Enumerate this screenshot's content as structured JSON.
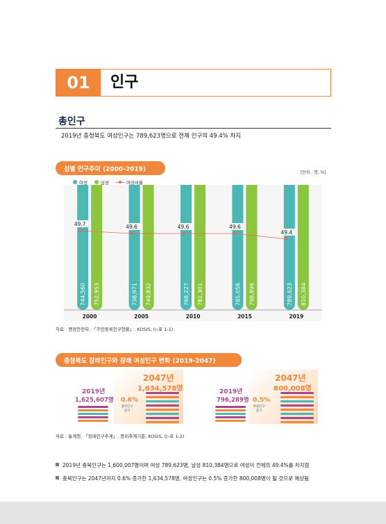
{
  "chapter": {
    "number": "01",
    "title": "인구"
  },
  "section": {
    "title": "총인구",
    "subtitle": "2019년 충청북도 여성인구는 789,623명으로 전체 인구의 49.4% 차지"
  },
  "chart1": {
    "title": "성별 인구추이 (2000-2019)",
    "unit": "[단위 : 명, %]",
    "legend": {
      "female": "여성",
      "male": "남성",
      "ratio": "여성비율"
    },
    "source": "자료 : 행정안전부, 「주민등록인구현황」, KOSIS, (▷표 1-1)"
  },
  "chart_data": {
    "type": "bar",
    "categories": [
      "2000",
      "2005",
      "2010",
      "2015",
      "2019"
    ],
    "series": [
      {
        "name": "여성",
        "values": [
          744560,
          738971,
          768227,
          785056,
          789623
        ],
        "labels": [
          "744,560",
          "738,971",
          "768,227",
          "785,056",
          "789,623"
        ],
        "color": "#4bb8b5"
      },
      {
        "name": "남성",
        "values": [
          752953,
          749832,
          781301,
          798896,
          810384
        ],
        "labels": [
          "752,953",
          "749,832",
          "781,301",
          "798,896",
          "810,384"
        ],
        "color": "#8cc63f"
      },
      {
        "name": "여성비율",
        "type": "line",
        "values": [
          49.7,
          49.6,
          49.6,
          49.6,
          49.4
        ],
        "color": "#e36c5a"
      }
    ],
    "ylim": [
      0,
      900000
    ]
  },
  "chart2": {
    "title": "충청북도 장래인구와 장래 여성인구 변화 (2019-2047)",
    "left": {
      "year_now": "2019년",
      "value_now": "1,625,607명",
      "year_future": "2047년",
      "value_future": "1,634,578명",
      "pct": "0.6%",
      "pct_label_1": "총북인구",
      "pct_label_2": "증가"
    },
    "right": {
      "year_now": "2019년",
      "value_now": "796,289명",
      "year_future": "2047년",
      "value_future": "800,008명",
      "pct": "0.5%",
      "pct_label_1": "여성인구",
      "pct_label_2": "증가"
    },
    "source": "자료 : 통계청, 「장래인구추계」, 중위추계기준, KOSIS, (▷표 1-2)"
  },
  "notes": [
    "2019년 충북인구는 1,600,007명이며 여성 789,623명, 남성 810,384명으로 여성이 전체의 49.4%를 차지함",
    "충북인구는 2047년까지 0.6% 증가한 1,634,578명, 여성인구는 0.5% 증가한 800,008명이 될 것으로 예상됨"
  ],
  "colors": {
    "accent": "#f0873a",
    "female": "#4bb8b5",
    "male": "#8cc63f",
    "ratio": "#e36c5a",
    "purple": "#a44a8a"
  }
}
